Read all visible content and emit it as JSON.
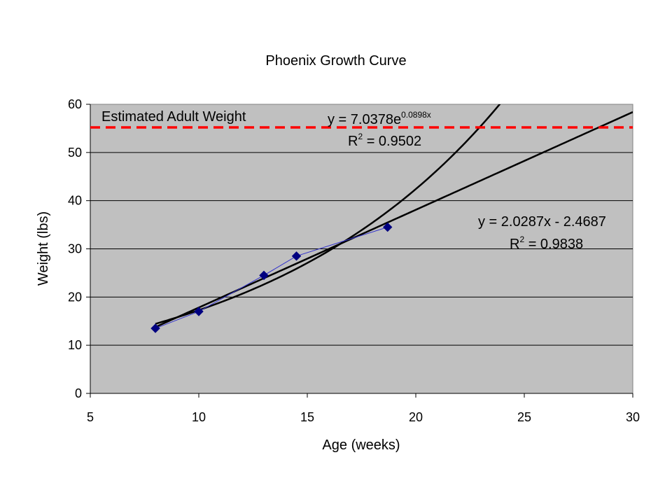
{
  "chart_data": {
    "type": "scatter",
    "title": "Phoenix Growth Curve",
    "xlabel": "Age (weeks)",
    "ylabel": "Weight (lbs)",
    "xlim": [
      5,
      30
    ],
    "ylim": [
      0,
      60
    ],
    "xticks": [
      5,
      10,
      15,
      20,
      25,
      30
    ],
    "yticks": [
      0,
      10,
      20,
      30,
      40,
      50,
      60
    ],
    "grid": "horizontal",
    "plot_background": "#c0c0c0",
    "series": [
      {
        "x": [
          8,
          10,
          13,
          14.5,
          18.7
        ],
        "y": [
          13.5,
          17,
          24.5,
          28.5,
          34.5
        ],
        "color": "#000080",
        "marker": "diamond",
        "connected": true
      }
    ],
    "trendlines": [
      {
        "kind": "exponential",
        "a": 7.0378,
        "b": 0.0898,
        "equation_main": "y = 7.0378e",
        "equation_exp": "0.0898x",
        "r2_prefix": "R",
        "r2_sup": "2",
        "r2_value": " = 0.9502",
        "x_range": [
          8,
          24
        ],
        "color": "#000000"
      },
      {
        "kind": "linear",
        "slope": 2.0287,
        "intercept": -2.4687,
        "equation_main": "y = 2.0287x - 2.4687",
        "r2_prefix": "R",
        "r2_sup": "2",
        "r2_value": " = 0.9838",
        "x_range": [
          8,
          30
        ],
        "color": "#000000"
      }
    ],
    "reference_lines": [
      {
        "label": "Estimated Adult Weight",
        "y": 55.2,
        "color": "#ff0000",
        "style": "dashed"
      }
    ]
  }
}
